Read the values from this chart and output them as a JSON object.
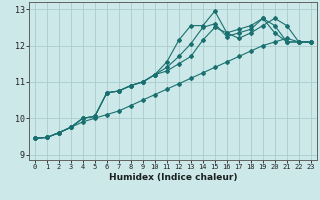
{
  "xlabel": "Humidex (Indice chaleur)",
  "bg_color": "#cce8e8",
  "grid_color": "#aacccc",
  "line_color": "#1a7070",
  "xlim": [
    -0.5,
    23.5
  ],
  "ylim": [
    8.85,
    13.2
  ],
  "yticks": [
    9,
    10,
    11,
    12,
    13
  ],
  "xticks": [
    0,
    1,
    2,
    3,
    4,
    5,
    6,
    7,
    8,
    9,
    10,
    11,
    12,
    13,
    14,
    15,
    16,
    17,
    18,
    19,
    20,
    21,
    22,
    23
  ],
  "lines": [
    {
      "x": [
        0,
        1,
        2,
        3,
        4,
        5,
        6,
        7,
        8,
        9,
        10,
        11,
        12,
        13,
        14,
        15,
        16,
        17,
        18,
        19,
        20,
        21,
        22,
        23
      ],
      "y": [
        9.45,
        9.47,
        9.6,
        9.75,
        9.9,
        10.0,
        10.1,
        10.2,
        10.35,
        10.5,
        10.65,
        10.8,
        10.95,
        11.1,
        11.25,
        11.4,
        11.55,
        11.7,
        11.85,
        12.0,
        12.1,
        12.2,
        12.1,
        12.1
      ]
    },
    {
      "x": [
        0,
        1,
        2,
        3,
        4,
        5,
        6,
        7,
        8,
        9,
        10,
        11,
        12,
        13,
        14,
        15,
        16,
        17,
        18,
        19,
        20,
        21,
        22,
        23
      ],
      "y": [
        9.45,
        9.47,
        9.6,
        9.75,
        10.0,
        10.05,
        10.7,
        10.75,
        10.9,
        11.0,
        11.2,
        11.3,
        11.5,
        11.7,
        12.15,
        12.5,
        12.35,
        12.2,
        12.35,
        12.55,
        12.75,
        12.55,
        12.1,
        12.1
      ]
    },
    {
      "x": [
        0,
        1,
        2,
        3,
        4,
        5,
        6,
        7,
        8,
        9,
        10,
        11,
        12,
        13,
        14,
        15,
        16,
        17,
        18,
        19,
        20,
        21,
        22,
        23
      ],
      "y": [
        9.45,
        9.47,
        9.6,
        9.75,
        10.0,
        10.05,
        10.7,
        10.75,
        10.9,
        11.0,
        11.2,
        11.4,
        11.7,
        12.05,
        12.5,
        12.6,
        12.25,
        12.35,
        12.45,
        12.75,
        12.35,
        12.1,
        12.1,
        12.1
      ]
    },
    {
      "x": [
        0,
        1,
        2,
        3,
        4,
        5,
        6,
        7,
        8,
        9,
        10,
        11,
        12,
        13,
        14,
        15,
        16,
        17,
        18,
        19,
        20,
        21,
        22,
        23
      ],
      "y": [
        9.45,
        9.47,
        9.6,
        9.75,
        10.0,
        10.05,
        10.7,
        10.75,
        10.9,
        11.0,
        11.2,
        11.55,
        12.15,
        12.55,
        12.55,
        12.95,
        12.35,
        12.45,
        12.55,
        12.75,
        12.55,
        12.1,
        12.1,
        12.1
      ]
    }
  ]
}
